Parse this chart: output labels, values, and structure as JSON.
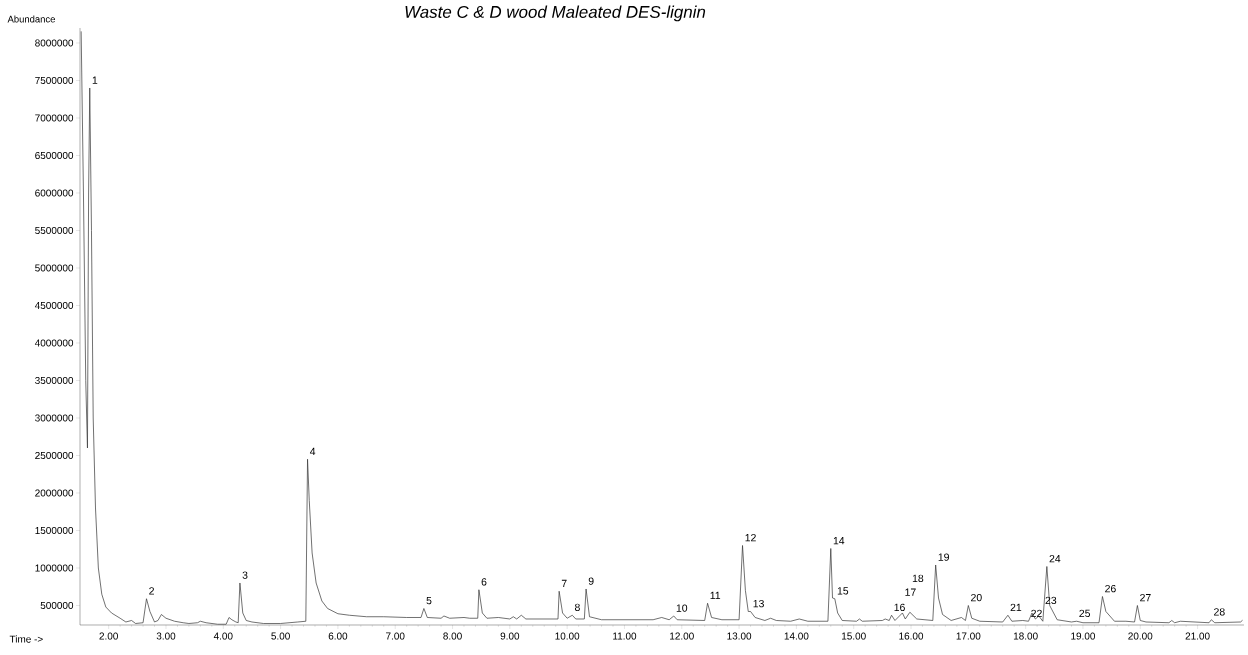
{
  "chart_data": {
    "type": "line",
    "title": "Waste C & D wood Maleated DES-lignin",
    "xlabel": "Time ->",
    "ylabel": "Abundance",
    "color": "#333333",
    "marker": "none",
    "line_style": "solid",
    "xlim": [
      1.5,
      21.81
    ],
    "ylim": [
      240000,
      8200000
    ],
    "xticks": [
      {
        "value": 2,
        "label": "2.00"
      },
      {
        "value": 3,
        "label": "3.00"
      },
      {
        "value": 4,
        "label": "4.00"
      },
      {
        "value": 5,
        "label": "5.00"
      },
      {
        "value": 6,
        "label": "6.00"
      },
      {
        "value": 7,
        "label": "7.00"
      },
      {
        "value": 8,
        "label": "8.00"
      },
      {
        "value": 9,
        "label": "9.00"
      },
      {
        "value": 10,
        "label": "10.00"
      },
      {
        "value": 11,
        "label": "11.00"
      },
      {
        "value": 12,
        "label": "12.00"
      },
      {
        "value": 13,
        "label": "13.00"
      },
      {
        "value": 14,
        "label": "14.00"
      },
      {
        "value": 15,
        "label": "15.00"
      },
      {
        "value": 16,
        "label": "16.00"
      },
      {
        "value": 17,
        "label": "17.00"
      },
      {
        "value": 18,
        "label": "18.00"
      },
      {
        "value": 19,
        "label": "19.00"
      },
      {
        "value": 20,
        "label": "20.00"
      },
      {
        "value": 21,
        "label": "21.00"
      }
    ],
    "yticks": [
      500000,
      1000000,
      1500000,
      2000000,
      2500000,
      3000000,
      3500000,
      4000000,
      4500000,
      5000000,
      5500000,
      6000000,
      6500000,
      7000000,
      7500000,
      8000000
    ],
    "x": [
      1.52,
      1.56,
      1.6,
      1.63,
      1.65,
      1.67,
      1.7,
      1.73,
      1.77,
      1.82,
      1.88,
      1.95,
      2.05,
      2.2,
      2.3,
      2.4,
      2.47,
      2.6,
      2.66,
      2.72,
      2.8,
      2.86,
      2.92,
      3.0,
      3.15,
      3.3,
      3.4,
      3.55,
      3.6,
      3.7,
      3.9,
      4.05,
      4.1,
      4.15,
      4.22,
      4.26,
      4.29,
      4.34,
      4.4,
      4.5,
      4.7,
      5.0,
      5.3,
      5.44,
      5.47,
      5.5,
      5.55,
      5.62,
      5.72,
      5.82,
      6.0,
      6.2,
      6.5,
      6.8,
      7.2,
      7.45,
      7.5,
      7.56,
      7.8,
      7.85,
      7.95,
      8.2,
      8.3,
      8.44,
      8.46,
      8.52,
      8.6,
      8.8,
      9.0,
      9.06,
      9.12,
      9.2,
      9.28,
      9.84,
      9.86,
      9.92,
      10.0,
      10.09,
      10.15,
      10.3,
      10.33,
      10.39,
      10.6,
      11.5,
      11.65,
      11.78,
      11.86,
      11.92,
      12.4,
      12.45,
      12.52,
      12.7,
      13.0,
      13.06,
      13.11,
      13.16,
      13.2,
      13.28,
      13.45,
      13.55,
      13.65,
      13.9,
      14.05,
      14.2,
      14.55,
      14.6,
      14.63,
      14.67,
      14.72,
      14.8,
      15.05,
      15.1,
      15.15,
      15.5,
      15.55,
      15.62,
      15.66,
      15.72,
      15.85,
      15.9,
      15.98,
      16.1,
      16.38,
      16.43,
      16.48,
      16.55,
      16.7,
      16.88,
      16.95,
      17.0,
      17.06,
      17.2,
      17.6,
      17.69,
      17.76,
      17.95,
      18.05,
      18.11,
      18.17,
      18.23,
      18.3,
      18.37,
      18.42,
      18.55,
      18.8,
      18.89,
      19.0,
      19.28,
      19.34,
      19.4,
      19.55,
      19.75,
      19.9,
      19.95,
      20.0,
      20.1,
      20.5,
      20.55,
      20.6,
      20.7,
      21.2,
      21.24,
      21.3,
      21.75,
      21.78
    ],
    "values": [
      8150000,
      6000000,
      3500000,
      2600000,
      6000000,
      7400000,
      5500000,
      3000000,
      1800000,
      1000000,
      650000,
      480000,
      400000,
      330000,
      280000,
      300000,
      260000,
      270000,
      590000,
      420000,
      280000,
      300000,
      380000,
      330000,
      290000,
      270000,
      260000,
      270000,
      290000,
      270000,
      250000,
      250000,
      340000,
      310000,
      280000,
      270000,
      800000,
      400000,
      300000,
      280000,
      260000,
      260000,
      280000,
      290000,
      2450000,
      1900000,
      1200000,
      800000,
      560000,
      460000,
      390000,
      370000,
      350000,
      350000,
      340000,
      340000,
      460000,
      340000,
      330000,
      360000,
      330000,
      340000,
      330000,
      330000,
      710000,
      400000,
      330000,
      340000,
      320000,
      350000,
      320000,
      370000,
      320000,
      320000,
      690000,
      400000,
      330000,
      370000,
      320000,
      320000,
      720000,
      350000,
      310000,
      310000,
      340000,
      310000,
      360000,
      310000,
      300000,
      530000,
      340000,
      310000,
      310000,
      1300000,
      700000,
      420000,
      420000,
      340000,
      300000,
      330000,
      300000,
      290000,
      320000,
      290000,
      290000,
      1260000,
      600000,
      590000,
      400000,
      300000,
      290000,
      320000,
      290000,
      300000,
      320000,
      300000,
      370000,
      300000,
      400000,
      320000,
      410000,
      320000,
      300000,
      1040000,
      600000,
      380000,
      300000,
      340000,
      300000,
      500000,
      330000,
      290000,
      280000,
      370000,
      290000,
      300000,
      290000,
      400000,
      320000,
      360000,
      290000,
      1020000,
      500000,
      310000,
      280000,
      290000,
      270000,
      270000,
      620000,
      420000,
      290000,
      290000,
      280000,
      500000,
      300000,
      280000,
      270000,
      300000,
      270000,
      290000,
      270000,
      310000,
      270000,
      280000,
      300000
    ],
    "annotations": [
      {
        "text": "1",
        "x": 1.67,
        "y": 7400000
      },
      {
        "text": "2",
        "x": 2.66,
        "y": 590000
      },
      {
        "text": "3",
        "x": 4.29,
        "y": 800000
      },
      {
        "text": "4",
        "x": 5.47,
        "y": 2450000
      },
      {
        "text": "5",
        "x": 7.5,
        "y": 460000
      },
      {
        "text": "6",
        "x": 8.46,
        "y": 710000
      },
      {
        "text": "7",
        "x": 9.86,
        "y": 690000
      },
      {
        "text": "8",
        "x": 10.09,
        "y": 370000
      },
      {
        "text": "9",
        "x": 10.33,
        "y": 720000
      },
      {
        "text": "10",
        "x": 11.86,
        "y": 360000
      },
      {
        "text": "11",
        "x": 12.45,
        "y": 530000
      },
      {
        "text": "12",
        "x": 13.06,
        "y": 1300000
      },
      {
        "text": "13",
        "x": 13.2,
        "y": 420000
      },
      {
        "text": "14",
        "x": 14.6,
        "y": 1260000
      },
      {
        "text": "15",
        "x": 14.67,
        "y": 590000
      },
      {
        "text": "16",
        "x": 15.66,
        "y": 370000
      },
      {
        "text": "17",
        "x": 15.85,
        "y": 400000
      },
      {
        "text": "18",
        "x": 15.98,
        "y": 410000
      },
      {
        "text": "19",
        "x": 16.43,
        "y": 1040000
      },
      {
        "text": "20",
        "x": 17.0,
        "y": 500000
      },
      {
        "text": "21",
        "x": 17.69,
        "y": 370000
      },
      {
        "text": "22",
        "x": 18.05,
        "y": 290000
      },
      {
        "text": "23",
        "x": 18.3,
        "y": 290000
      },
      {
        "text": "24",
        "x": 18.37,
        "y": 1020000
      },
      {
        "text": "25",
        "x": 18.89,
        "y": 290000
      },
      {
        "text": "26",
        "x": 19.34,
        "y": 620000
      },
      {
        "text": "27",
        "x": 19.95,
        "y": 500000
      },
      {
        "text": "28",
        "x": 21.24,
        "y": 310000
      }
    ]
  }
}
